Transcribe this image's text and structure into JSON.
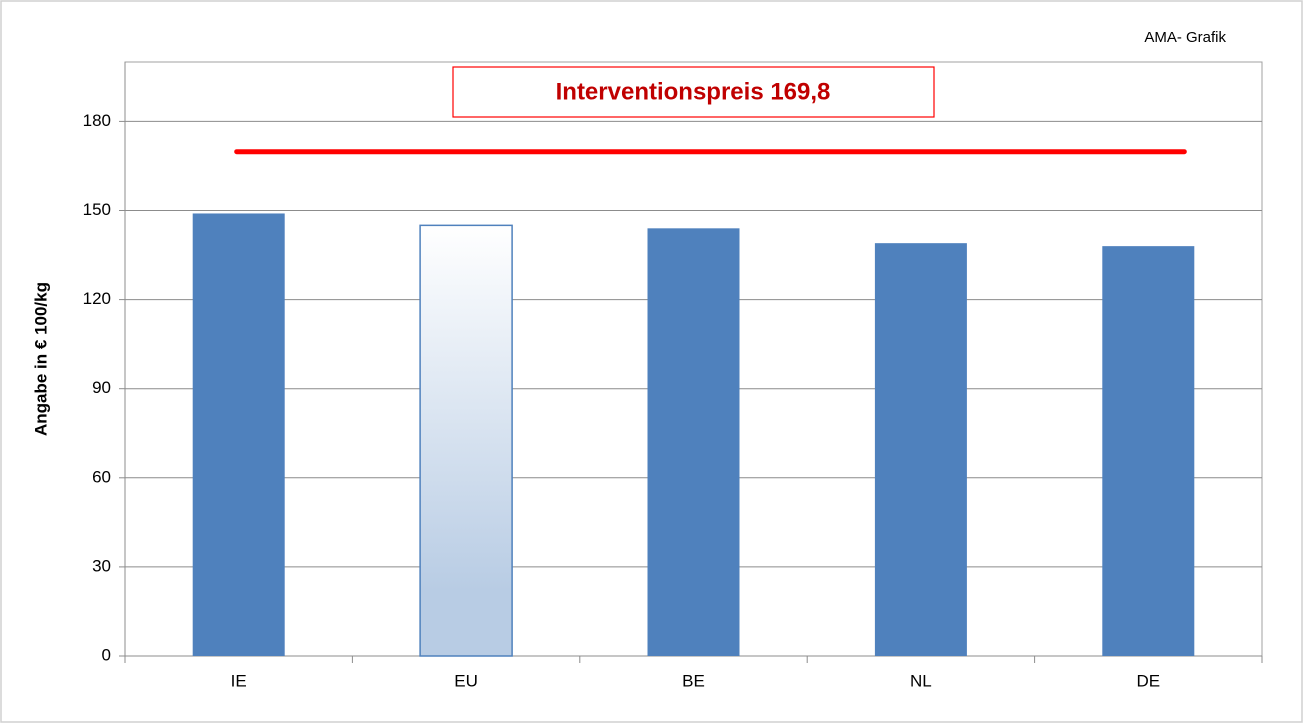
{
  "chart_data": {
    "type": "bar",
    "ylabel": "Angabe in € 100/kg",
    "credit": "AMA- Grafik",
    "categories": [
      "IE",
      "EU",
      "BE",
      "NL",
      "DE"
    ],
    "values": [
      149,
      145,
      144,
      139,
      138
    ],
    "color": "#4f81bd",
    "colors": [
      "#4f81bd",
      "#b8cce4",
      "#4f81bd",
      "#4f81bd",
      "#4f81bd"
    ],
    "ylim": [
      0,
      200
    ],
    "yticks": [
      0,
      30,
      60,
      90,
      120,
      150,
      180
    ],
    "grid": true,
    "reference_line": {
      "value": 169.8,
      "label": "Interventionspreis 169,8",
      "color": "#ff0000",
      "label_color": "#c00000"
    }
  }
}
